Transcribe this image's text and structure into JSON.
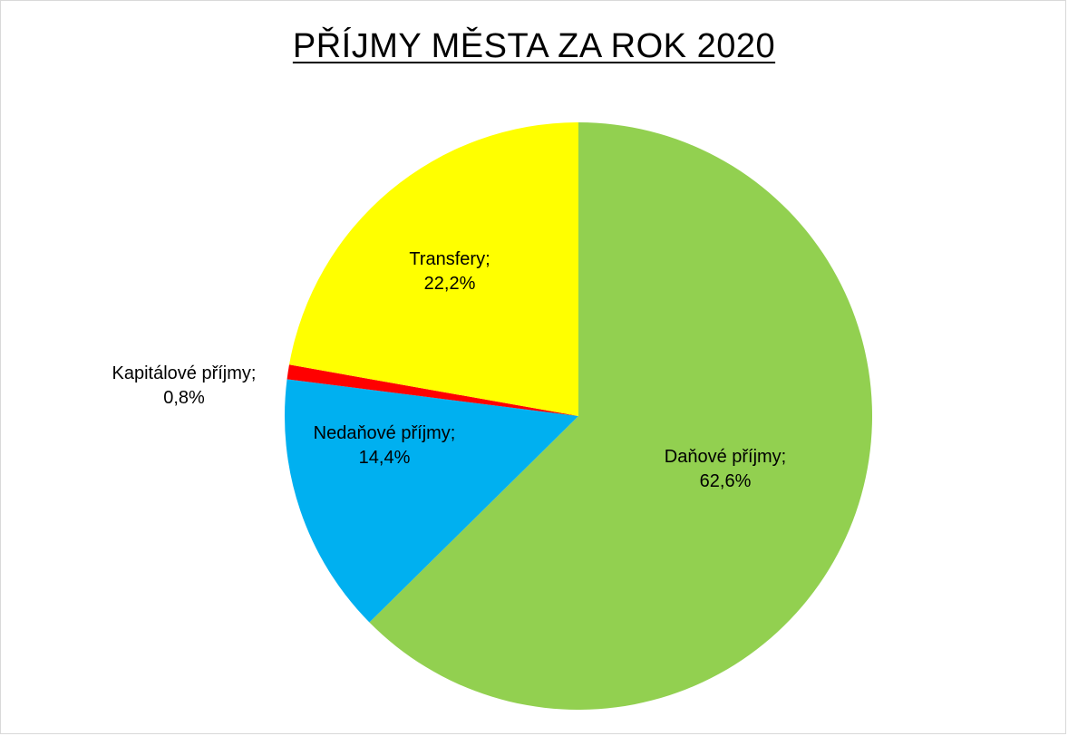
{
  "chart_data": {
    "type": "pie",
    "title": "PŘÍJMY MĚSTA ZA ROK 2020",
    "slices": [
      {
        "label": "Daňové příjmy;",
        "value": 62.6,
        "value_label": "62,6%",
        "color": "#92d050"
      },
      {
        "label": "Nedaňové příjmy;",
        "value": 14.4,
        "value_label": "14,4%",
        "color": "#00b0f0"
      },
      {
        "label": "Kapitálové příjmy;",
        "value": 0.8,
        "value_label": "0,8%",
        "color": "#ff0000"
      },
      {
        "label": "Transfery;",
        "value": 22.2,
        "value_label": "22,2%",
        "color": "#ffff00"
      }
    ],
    "start": "12 o'clock",
    "direction": "clockwise",
    "legend": "none"
  }
}
